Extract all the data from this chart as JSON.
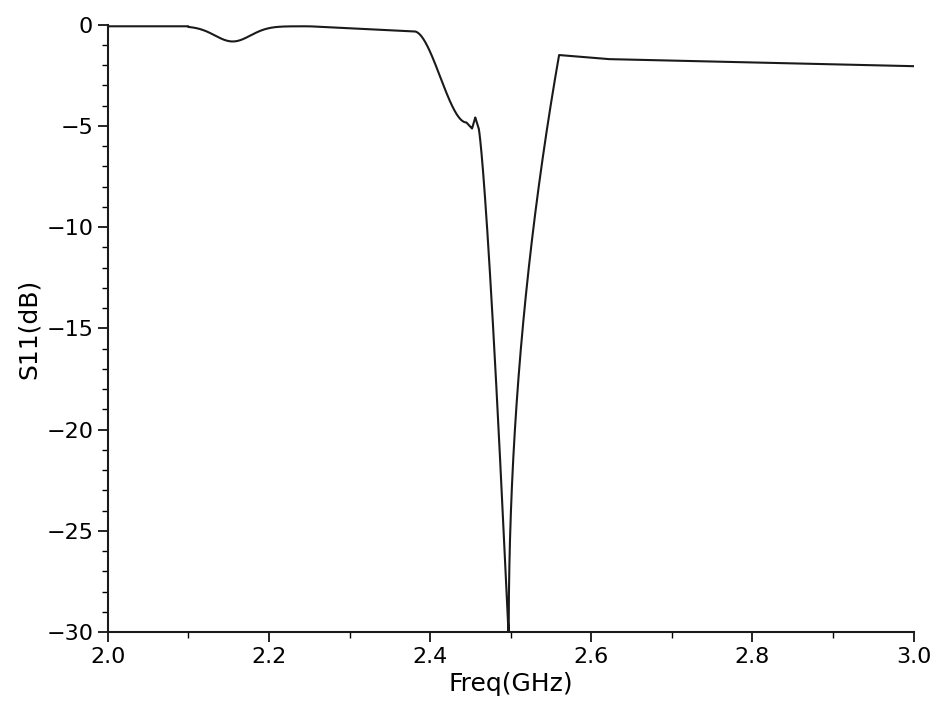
{
  "xlabel": "Freq(GHz)",
  "ylabel": "S11(dB)",
  "xlim": [
    2.0,
    3.0
  ],
  "ylim": [
    -30,
    0
  ],
  "xticks": [
    2.0,
    2.2,
    2.4,
    2.6,
    2.8,
    3.0
  ],
  "yticks": [
    0,
    -5,
    -10,
    -15,
    -20,
    -25,
    -30
  ],
  "line_color": "#1a1a1a",
  "line_width": 1.5,
  "background_color": "#ffffff",
  "xlabel_fontsize": 18,
  "ylabel_fontsize": 18,
  "tick_fontsize": 16
}
